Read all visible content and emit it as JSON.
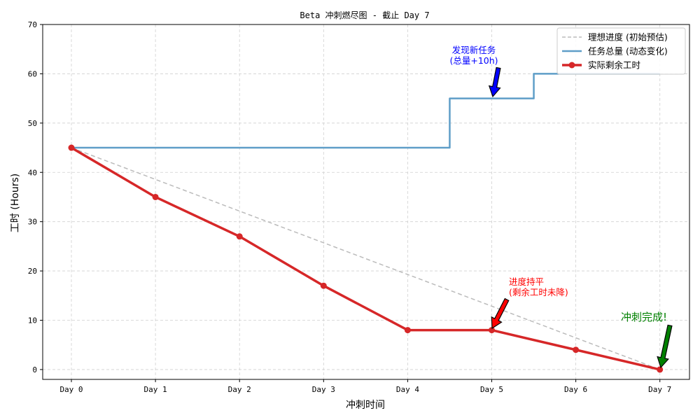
{
  "chart_data": {
    "type": "line",
    "title": "Beta 冲刺燃尽图 - 截止 Day 7",
    "xlabel": "冲刺时间",
    "ylabel": "工时 (Hours)",
    "categories": [
      "Day 0",
      "Day 1",
      "Day 2",
      "Day 3",
      "Day 4",
      "Day 5",
      "Day 6",
      "Day 7"
    ],
    "ylim": [
      -2,
      70
    ],
    "yticks": [
      0,
      10,
      20,
      30,
      40,
      50,
      60,
      70
    ],
    "grid": true,
    "legend_placement": "top-right",
    "series": [
      {
        "name": "理想进度 (初始预估)",
        "style": "dashed",
        "color": "#bbbbbb",
        "points": [
          [
            0,
            45
          ],
          [
            7,
            0
          ]
        ]
      },
      {
        "name": "任务总量 (动态变化)",
        "style": "step",
        "color": "#5f9ec8",
        "points": [
          [
            0,
            45
          ],
          [
            4.5,
            45
          ],
          [
            4.5,
            55
          ],
          [
            5.5,
            55
          ],
          [
            5.5,
            60
          ],
          [
            7,
            60
          ]
        ]
      },
      {
        "name": "实际剩余工时",
        "style": "line-marker",
        "color": "#d62728",
        "points": [
          [
            0,
            45
          ],
          [
            1,
            35
          ],
          [
            2,
            27
          ],
          [
            3,
            17
          ],
          [
            4,
            8
          ],
          [
            5,
            8
          ],
          [
            6,
            4
          ],
          [
            7,
            0
          ]
        ]
      }
    ],
    "annotations": [
      {
        "text_lines": [
          "发现新任务",
          "(总量+10h)"
        ],
        "color": "#0000ff",
        "arrow_color": "#0000ff",
        "arrow_target": [
          5,
          55
        ]
      },
      {
        "text_lines": [
          "进度持平",
          "(剩余工时未降)"
        ],
        "color": "#ff0000",
        "arrow_color": "#ff0000",
        "arrow_target": [
          5,
          8
        ]
      },
      {
        "text_lines": [
          "冲刺完成!"
        ],
        "color": "#008000",
        "arrow_color": "#008000",
        "arrow_target": [
          7,
          0
        ]
      }
    ]
  }
}
